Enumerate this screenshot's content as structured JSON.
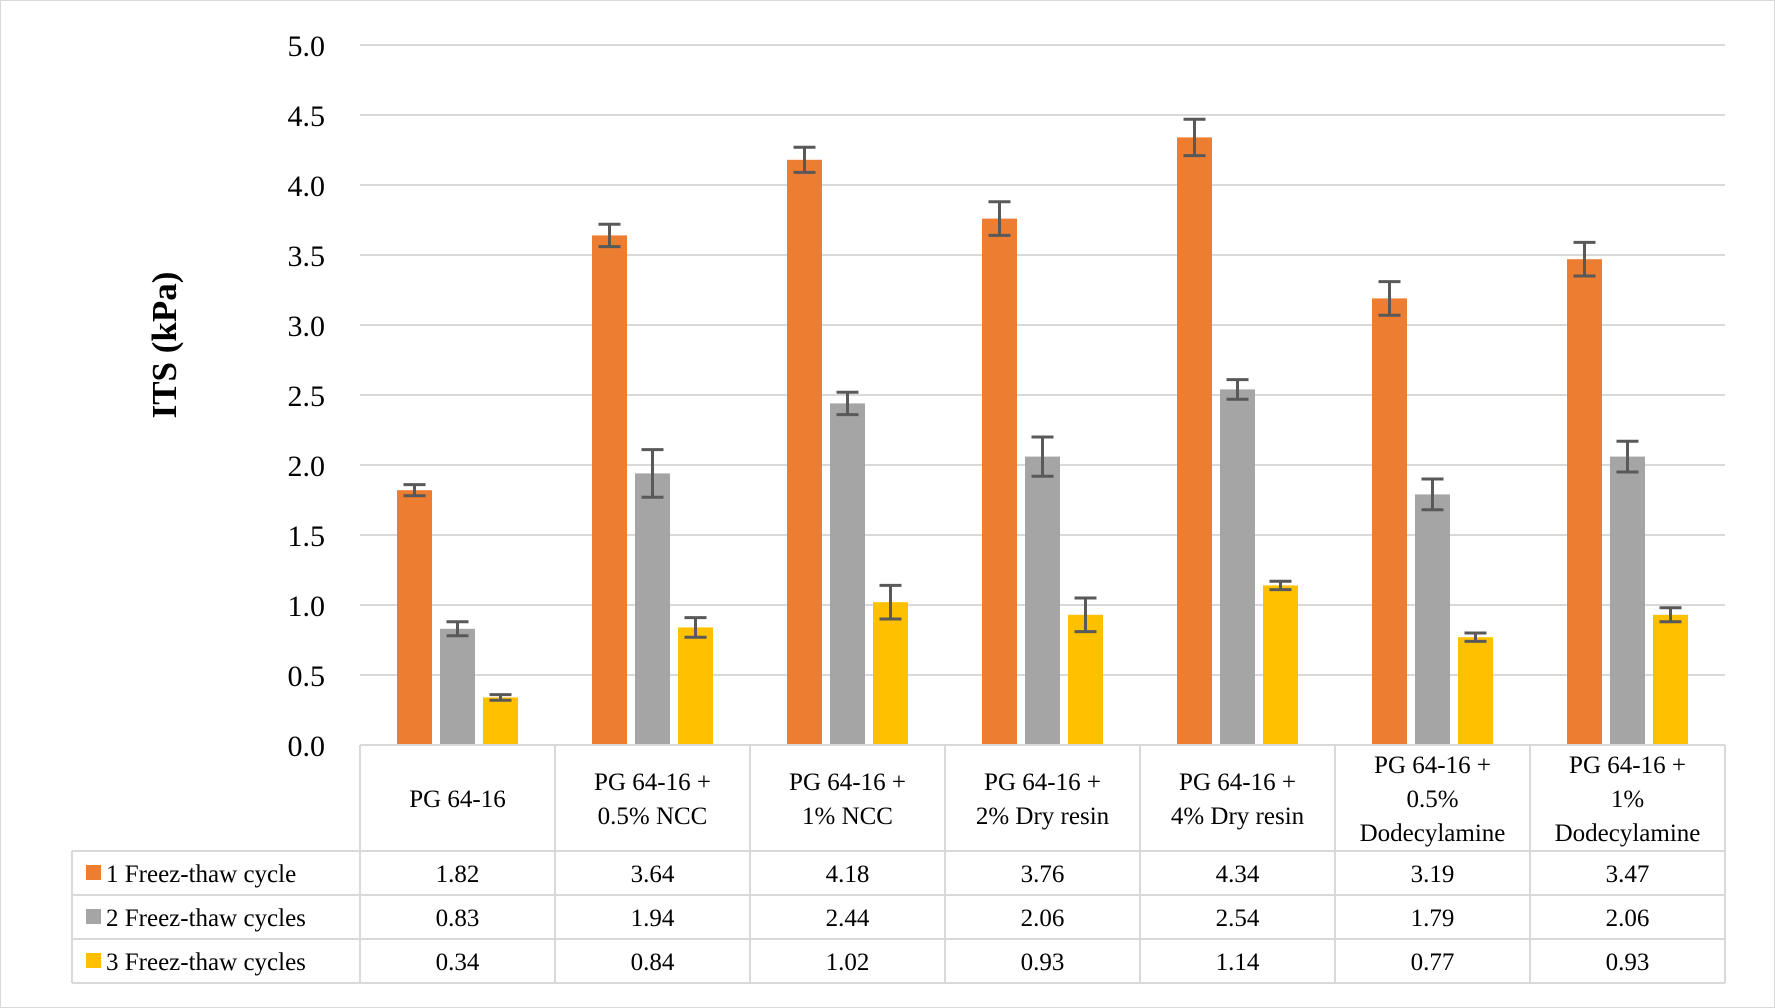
{
  "chart_data": {
    "type": "bar",
    "title": "",
    "xlabel": "",
    "ylabel": "ITS (kPa)",
    "ylim": [
      0,
      5.0
    ],
    "ytick_step": 0.5,
    "grid": true,
    "legend": "data-table-below",
    "categories": [
      [
        "PG 64-16"
      ],
      [
        "PG 64-16 +",
        "0.5% NCC"
      ],
      [
        "PG 64-16 +",
        "1% NCC"
      ],
      [
        "PG 64-16 +",
        "2% Dry resin"
      ],
      [
        "PG 64-16 +",
        "4% Dry resin"
      ],
      [
        "PG 64-16 +",
        "0.5%",
        "Dodecylamine"
      ],
      [
        "PG 64-16 +",
        "1%",
        "Dodecylamine"
      ]
    ],
    "series": [
      {
        "name": "1 Freez-thaw cycle",
        "color": "#ED7D31",
        "values": [
          1.82,
          3.64,
          4.18,
          3.76,
          4.34,
          3.19,
          3.47
        ],
        "labels": [
          "1.82",
          "3.64",
          "4.18",
          "3.76",
          "4.34",
          "3.19",
          "3.47"
        ],
        "errors": [
          0.04,
          0.08,
          0.09,
          0.12,
          0.13,
          0.12,
          0.12
        ]
      },
      {
        "name": "2 Freez-thaw cycles",
        "color": "#A5A5A5",
        "values": [
          0.83,
          1.94,
          2.44,
          2.06,
          2.54,
          1.79,
          2.06
        ],
        "labels": [
          "0.83",
          "1.94",
          "2.44",
          "2.06",
          "2.54",
          "1.79",
          "2.06"
        ],
        "errors": [
          0.05,
          0.17,
          0.08,
          0.14,
          0.07,
          0.11,
          0.11
        ]
      },
      {
        "name": "3 Freez-thaw cycles",
        "color": "#FFC000",
        "values": [
          0.34,
          0.84,
          1.02,
          0.93,
          1.14,
          0.77,
          0.93
        ],
        "labels": [
          "0.34",
          "0.84",
          "1.02",
          "0.93",
          "1.14",
          "0.77",
          "0.93"
        ],
        "errors": [
          0.02,
          0.07,
          0.12,
          0.12,
          0.03,
          0.03,
          0.05
        ]
      }
    ]
  }
}
